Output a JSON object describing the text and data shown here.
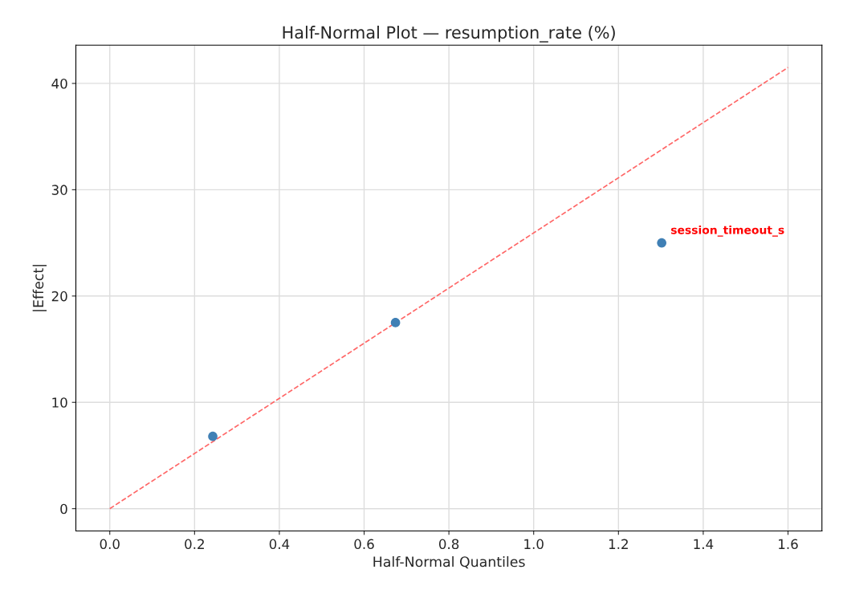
{
  "chart_data": {
    "type": "scatter",
    "title": "Half-Normal Plot — resumption_rate (%)",
    "xlabel": "Half-Normal Quantiles",
    "ylabel": "|Effect|",
    "series": [
      {
        "color": "#4080b5",
        "x": [
          0.243,
          0.674,
          1.302
        ],
        "values": [
          6.8,
          17.5,
          25.0
        ],
        "marker": "circle"
      },
      {
        "type": "line",
        "color": "#ff6666",
        "x": [
          0.0,
          1.6
        ],
        "values": [
          0.0,
          41.5
        ],
        "line_style": "dashed",
        "marker": "none"
      }
    ],
    "annotations": [
      {
        "text": "session_timeout_s",
        "x": 1.302,
        "y": 25.0
      }
    ],
    "xlim": [
      -0.08,
      1.68
    ],
    "ylim": [
      -2.1,
      43.6
    ],
    "xticks": [
      {
        "value": 0.0,
        "label": "0.0"
      },
      0.2,
      0.4,
      0.6,
      0.8,
      {
        "value": 1.0,
        "label": "1.0"
      },
      1.2,
      1.4,
      1.6
    ],
    "yticks": [
      0,
      10,
      20,
      30,
      40
    ],
    "grid": true,
    "legend": false
  }
}
